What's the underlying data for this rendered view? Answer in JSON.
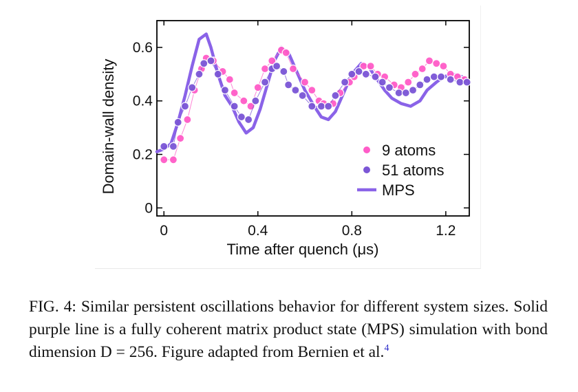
{
  "chart_data": {
    "type": "line",
    "xlabel": "Time after quench (μs)",
    "ylabel": "Domain-wall density",
    "xlim": [
      -0.03,
      1.3
    ],
    "ylim": [
      -0.03,
      0.7
    ],
    "x_ticks": [
      "0",
      "0.4",
      "0.8",
      "1.2"
    ],
    "y_ticks": [
      "0",
      "0.2",
      "0.4",
      "0.6"
    ],
    "legend_position": "lower-right",
    "series": [
      {
        "name": "9 atoms",
        "kind": "scatter",
        "color": "#ff5cc8",
        "x": [
          0.0,
          0.04,
          0.07,
          0.1,
          0.13,
          0.16,
          0.18,
          0.21,
          0.25,
          0.28,
          0.3,
          0.34,
          0.37,
          0.4,
          0.43,
          0.46,
          0.5,
          0.52,
          0.55,
          0.6,
          0.63,
          0.66,
          0.68,
          0.72,
          0.75,
          0.79,
          0.81,
          0.85,
          0.88,
          0.91,
          0.94,
          0.98,
          1.01,
          1.04,
          1.07,
          1.1,
          1.13,
          1.16,
          1.19,
          1.22,
          1.25,
          1.28
        ],
        "y": [
          0.18,
          0.18,
          0.26,
          0.33,
          0.44,
          0.52,
          0.56,
          0.55,
          0.51,
          0.48,
          0.43,
          0.4,
          0.38,
          0.45,
          0.52,
          0.55,
          0.59,
          0.58,
          0.52,
          0.47,
          0.44,
          0.4,
          0.39,
          0.39,
          0.43,
          0.47,
          0.49,
          0.53,
          0.53,
          0.5,
          0.49,
          0.46,
          0.45,
          0.47,
          0.5,
          0.52,
          0.55,
          0.54,
          0.53,
          0.5,
          0.49,
          0.48
        ],
        "connected": true
      },
      {
        "name": "51 atoms",
        "kind": "scatter",
        "color": "#7b56d6",
        "x": [
          0.0,
          0.04,
          0.06,
          0.09,
          0.12,
          0.15,
          0.17,
          0.2,
          0.23,
          0.26,
          0.3,
          0.33,
          0.36,
          0.39,
          0.43,
          0.46,
          0.48,
          0.51,
          0.53,
          0.56,
          0.59,
          0.63,
          0.67,
          0.7,
          0.73,
          0.77,
          0.8,
          0.83,
          0.86,
          0.9,
          0.93,
          0.96,
          1.0,
          1.03,
          1.06,
          1.09,
          1.12,
          1.15,
          1.18,
          1.22,
          1.26,
          1.29
        ],
        "y": [
          0.23,
          0.23,
          0.32,
          0.38,
          0.45,
          0.5,
          0.54,
          0.55,
          0.5,
          0.44,
          0.38,
          0.34,
          0.33,
          0.4,
          0.47,
          0.52,
          0.53,
          0.51,
          0.46,
          0.44,
          0.42,
          0.38,
          0.38,
          0.38,
          0.42,
          0.47,
          0.5,
          0.51,
          0.5,
          0.49,
          0.47,
          0.45,
          0.43,
          0.43,
          0.44,
          0.46,
          0.48,
          0.49,
          0.49,
          0.48,
          0.47,
          0.47
        ],
        "connected": true
      },
      {
        "name": "MPS",
        "kind": "line",
        "color": "#8a63e8",
        "x": [
          -0.03,
          0.0,
          0.03,
          0.06,
          0.09,
          0.12,
          0.15,
          0.18,
          0.2,
          0.23,
          0.26,
          0.29,
          0.32,
          0.35,
          0.38,
          0.41,
          0.44,
          0.47,
          0.5,
          0.53,
          0.56,
          0.6,
          0.64,
          0.67,
          0.7,
          0.73,
          0.77,
          0.8,
          0.84,
          0.87,
          0.9,
          0.94,
          0.97,
          1.01,
          1.05,
          1.09,
          1.12,
          1.16,
          1.19,
          1.23,
          1.27,
          1.3
        ],
        "y": [
          0.21,
          0.22,
          0.24,
          0.32,
          0.42,
          0.53,
          0.63,
          0.65,
          0.6,
          0.5,
          0.42,
          0.38,
          0.32,
          0.28,
          0.3,
          0.37,
          0.46,
          0.55,
          0.6,
          0.58,
          0.52,
          0.44,
          0.38,
          0.34,
          0.33,
          0.36,
          0.44,
          0.5,
          0.54,
          0.53,
          0.49,
          0.44,
          0.41,
          0.39,
          0.38,
          0.4,
          0.44,
          0.47,
          0.49,
          0.5,
          0.49,
          0.47
        ],
        "connected": true
      }
    ]
  },
  "caption": {
    "text": "FIG. 4:  Similar persistent oscillations behavior for different system sizes. Solid purple line is a fully coherent matrix product state (MPS) simulation with bond dimension D = 256. Figure adapted from Bernien et al.",
    "ref": "4"
  }
}
